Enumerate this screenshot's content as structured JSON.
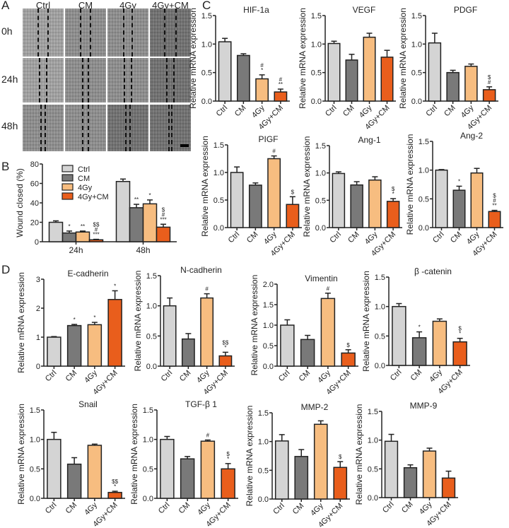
{
  "panels": {
    "a": "A",
    "b": "B",
    "c": "C",
    "d": "D"
  },
  "panel_a": {
    "columns": [
      "Ctrl",
      "CM",
      "4Gy",
      "4Gy+CM"
    ],
    "rows": [
      "0h",
      "24h",
      "48h"
    ]
  },
  "colors": {
    "Ctrl": "#d4d4d4",
    "CM": "#797979",
    "4Gy": "#f7bd80",
    "4Gy+CM": "#e95e1c"
  },
  "chart_data": [
    {
      "id": "wound",
      "type": "bar",
      "title": "",
      "ylabel": "Wound closed (%)",
      "ylim": [
        0,
        80
      ],
      "yticks": [
        "0",
        "20",
        "40",
        "60",
        "80"
      ],
      "categories": [
        "24h",
        "48h"
      ],
      "legend": [
        "Ctrl",
        "CM",
        "4Gy",
        "4Gy+CM"
      ],
      "legend_position": "top-left",
      "series": [
        {
          "name": "Ctrl",
          "values": [
            20,
            62
          ],
          "errors": [
            1.5,
            2.5
          ],
          "annotations": [
            "",
            ""
          ]
        },
        {
          "name": "CM",
          "values": [
            9,
            35
          ],
          "errors": [
            2,
            3.5
          ],
          "annotations": [
            "*",
            "**"
          ]
        },
        {
          "name": "4Gy",
          "values": [
            10,
            39
          ],
          "errors": [
            1,
            4
          ],
          "annotations": [
            "**",
            "*"
          ]
        },
        {
          "name": "4Gy+CM",
          "values": [
            2,
            15
          ],
          "errors": [
            0.5,
            3
          ],
          "annotations": [
            "$$\n#\n***",
            "$\n#\n***"
          ]
        }
      ]
    },
    {
      "id": "hif1a",
      "type": "bar",
      "title": "HIF-1a",
      "ylabel": "Relative mRNA expression",
      "ylim": [
        0,
        1.5
      ],
      "yticks": [
        "0.0",
        "0.5",
        "1.0",
        "1.5"
      ],
      "categories": [
        "Ctrl",
        "CM",
        "4Gy",
        "4Gy+CM"
      ],
      "values": [
        1.04,
        0.8,
        0.39,
        0.16
      ],
      "errors": [
        0.06,
        0.03,
        0.07,
        0.05
      ],
      "annotations": [
        "",
        "",
        "#\n*",
        "#\n**"
      ]
    },
    {
      "id": "vegf",
      "type": "bar",
      "title": "VEGF",
      "ylabel": "Relative mRNA expression",
      "ylim": [
        0,
        1.5
      ],
      "yticks": [
        "0.0",
        "0.5",
        "1.0",
        "1.5"
      ],
      "categories": [
        "Ctrl",
        "CM",
        "4Gy",
        "4Gy+CM"
      ],
      "values": [
        1.01,
        0.72,
        1.12,
        0.77
      ],
      "errors": [
        0.04,
        0.1,
        0.07,
        0.12
      ],
      "annotations": [
        "",
        "",
        "",
        ""
      ]
    },
    {
      "id": "pdgf",
      "type": "bar",
      "title": "PDGF",
      "ylabel": "Relative mRNA expression",
      "ylim": [
        0,
        1.5
      ],
      "yticks": [
        "0.0",
        "0.5",
        "1.0",
        "1.5"
      ],
      "categories": [
        "Ctrl",
        "CM",
        "4Gy",
        "4Gy+CM"
      ],
      "values": [
        1.02,
        0.5,
        0.61,
        0.2
      ],
      "errors": [
        0.17,
        0.04,
        0.04,
        0.05
      ],
      "annotations": [
        "",
        "",
        "",
        "$\n#"
      ]
    },
    {
      "id": "pigf",
      "type": "bar",
      "title": "PIGF",
      "ylabel": "Relative mRNA expression",
      "ylim": [
        0,
        1.5
      ],
      "yticks": [
        "0.0",
        "0.5",
        "1.0",
        "1.5"
      ],
      "categories": [
        "Ctrl",
        "CM",
        "4Gy",
        "4Gy+CM"
      ],
      "values": [
        1.0,
        0.77,
        1.25,
        0.42
      ],
      "errors": [
        0.1,
        0.04,
        0.05,
        0.14
      ],
      "annotations": [
        "",
        "",
        "#",
        "$"
      ]
    },
    {
      "id": "ang1",
      "type": "bar",
      "title": "Ang-1",
      "ylabel": "Relative mRNA expression",
      "ylim": [
        0,
        1.5
      ],
      "yticks": [
        "0.0",
        "0.5",
        "1.0",
        "1.5"
      ],
      "categories": [
        "Ctrl",
        "CM",
        "4Gy",
        "4Gy+CM"
      ],
      "values": [
        0.99,
        0.78,
        0.87,
        0.48
      ],
      "errors": [
        0.03,
        0.06,
        0.06,
        0.05
      ],
      "annotations": [
        "",
        "",
        "",
        "$\n*"
      ]
    },
    {
      "id": "ang2",
      "type": "bar",
      "title": "Ang-2",
      "ylabel": "Relative mRNA expression",
      "ylim": [
        0,
        1.5
      ],
      "yticks": [
        "0.0",
        "0.5",
        "1.0",
        "1.5"
      ],
      "categories": [
        "Ctrl",
        "CM",
        "4Gy",
        "4Gy+CM"
      ],
      "values": [
        1.0,
        0.65,
        0.95,
        0.28
      ],
      "errors": [
        0.01,
        0.07,
        0.08,
        0.02
      ],
      "annotations": [
        "",
        "*",
        "",
        "$\n#\n**"
      ]
    },
    {
      "id": "ecad",
      "type": "bar",
      "title": "E-cadherin",
      "ylabel": "Relative mRNA expression",
      "ylim": [
        0,
        3
      ],
      "yticks": [
        "0",
        "1",
        "2",
        "3"
      ],
      "categories": [
        "Ctrl",
        "CM",
        "4Gy",
        "4Gy+CM"
      ],
      "values": [
        1.0,
        1.4,
        1.43,
        2.3
      ],
      "errors": [
        0.02,
        0.04,
        0.08,
        0.3
      ],
      "annotations": [
        "",
        "*",
        "*",
        "*"
      ]
    },
    {
      "id": "ncad",
      "type": "bar",
      "title": "N-cadherin",
      "ylabel": "Relative mRNA expression",
      "ylim": [
        0,
        1.5
      ],
      "yticks": [
        "0.0",
        "0.5",
        "1.0",
        "1.5"
      ],
      "categories": [
        "Ctrl",
        "CM",
        "4Gy",
        "4Gy+CM"
      ],
      "values": [
        1.0,
        0.45,
        1.13,
        0.17
      ],
      "errors": [
        0.13,
        0.09,
        0.07,
        0.06
      ],
      "annotations": [
        "",
        "",
        "#",
        "$$\n*"
      ]
    },
    {
      "id": "vimentin",
      "type": "bar",
      "title": "Vimentin",
      "ylabel": "Relative mRNA expression",
      "ylim": [
        0,
        2
      ],
      "yticks": [
        "0.0",
        "0.5",
        "1.0",
        "1.5",
        "2.0"
      ],
      "categories": [
        "Ctrl",
        "CM",
        "4Gy",
        "4Gy+CM"
      ],
      "values": [
        1.0,
        0.65,
        1.65,
        0.32
      ],
      "errors": [
        0.13,
        0.1,
        0.13,
        0.08
      ],
      "annotations": [
        "",
        "",
        "#",
        "$"
      ]
    },
    {
      "id": "bcatenin",
      "type": "bar",
      "title": "β -catenin",
      "ylabel": "Relative mRNA expression",
      "ylim": [
        0,
        1.5
      ],
      "yticks": [
        "0.0",
        "0.5",
        "1.0",
        "1.5"
      ],
      "categories": [
        "Ctrl",
        "CM",
        "4Gy",
        "4Gy+CM"
      ],
      "values": [
        1.0,
        0.47,
        0.75,
        0.4
      ],
      "errors": [
        0.05,
        0.1,
        0.04,
        0.06
      ],
      "annotations": [
        "",
        "*",
        "",
        "$\n*"
      ]
    },
    {
      "id": "snail",
      "type": "bar",
      "title": "Snail",
      "ylabel": "Relative mRNA expression",
      "ylim": [
        0,
        1.5
      ],
      "yticks": [
        "0.0",
        "0.5",
        "1.0",
        "1.5"
      ],
      "categories": [
        "Ctrl",
        "CM",
        "4Gy",
        "4Gy+CM"
      ],
      "values": [
        1.0,
        0.58,
        0.9,
        0.1
      ],
      "errors": [
        0.12,
        0.11,
        0.02,
        0.02
      ],
      "annotations": [
        "",
        "",
        "",
        "$$\n*"
      ]
    },
    {
      "id": "tgfb1",
      "type": "bar",
      "title": "TGF-β 1",
      "ylabel": "Relative mRNA expression",
      "ylim": [
        0,
        1.5
      ],
      "yticks": [
        "0.0",
        "0.5",
        "1.0",
        "1.5"
      ],
      "categories": [
        "Ctrl",
        "CM",
        "4Gy",
        "4Gy+CM"
      ],
      "values": [
        1.0,
        0.67,
        0.97,
        0.5
      ],
      "errors": [
        0.05,
        0.04,
        0.02,
        0.09
      ],
      "annotations": [
        "",
        "",
        "#",
        "$\n*"
      ]
    },
    {
      "id": "mmp2",
      "type": "bar",
      "title": "MMP-2",
      "ylabel": "Relative mRNA expression",
      "ylim": [
        0,
        1.5
      ],
      "yticks": [
        "0.0",
        "0.5",
        "1.0",
        "1.5"
      ],
      "categories": [
        "Ctrl",
        "CM",
        "4Gy",
        "4Gy+CM"
      ],
      "values": [
        1.01,
        0.74,
        1.3,
        0.55
      ],
      "errors": [
        0.11,
        0.12,
        0.06,
        0.1
      ],
      "annotations": [
        "",
        "",
        "",
        "$"
      ]
    },
    {
      "id": "mmp9",
      "type": "bar",
      "title": "MMP-9",
      "ylabel": "Relative mRNA expression",
      "ylim": [
        0,
        1.5
      ],
      "yticks": [
        "0.0",
        "0.5",
        "1.0",
        "1.5"
      ],
      "categories": [
        "Ctrl",
        "CM",
        "4Gy",
        "4Gy+CM"
      ],
      "values": [
        0.98,
        0.52,
        0.81,
        0.34
      ],
      "errors": [
        0.12,
        0.05,
        0.05,
        0.12
      ],
      "annotations": [
        "",
        "",
        "",
        ""
      ]
    }
  ]
}
